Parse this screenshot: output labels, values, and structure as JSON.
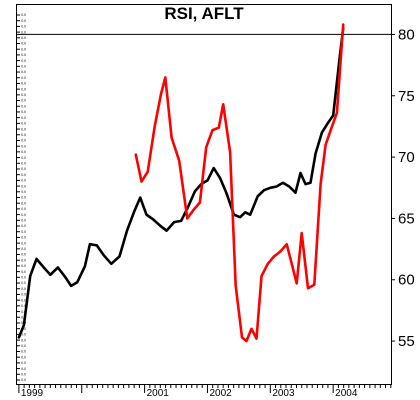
{
  "chart_data": {
    "type": "line",
    "title": "RSI, AFLT",
    "xlabel": "",
    "ylabel": "",
    "x_tick_labels": [
      "1999",
      "2001",
      "2002",
      "2003",
      "2004"
    ],
    "x_ticks": [
      1999.0,
      2001.0,
      2002.0,
      2003.0,
      2004.0
    ],
    "xlim": [
      1998.97,
      2004.92
    ],
    "y_ticks": [
      55,
      60,
      65,
      70,
      75,
      80
    ],
    "ylim": [
      51.5,
      82.4
    ],
    "reference_line": 80,
    "grid": false,
    "legend": "none",
    "series": [
      {
        "color": "#000000",
        "points": [
          [
            1999.0,
            55.3
          ],
          [
            1999.08,
            56.3
          ],
          [
            1999.18,
            60.3
          ],
          [
            1999.28,
            61.7
          ],
          [
            1999.38,
            61.1
          ],
          [
            1999.5,
            60.4
          ],
          [
            1999.62,
            61.0
          ],
          [
            1999.74,
            60.2
          ],
          [
            1999.83,
            59.5
          ],
          [
            1999.93,
            59.8
          ],
          [
            2000.05,
            61.1
          ],
          [
            2000.13,
            62.9
          ],
          [
            2000.24,
            62.8
          ],
          [
            2000.35,
            62.0
          ],
          [
            2000.47,
            61.3
          ],
          [
            2000.6,
            61.9
          ],
          [
            2000.72,
            64.0
          ],
          [
            2000.83,
            65.5
          ],
          [
            2000.93,
            66.7
          ],
          [
            2001.03,
            65.3
          ],
          [
            2001.14,
            64.9
          ],
          [
            2001.25,
            64.4
          ],
          [
            2001.35,
            64.0
          ],
          [
            2001.47,
            64.7
          ],
          [
            2001.58,
            64.8
          ],
          [
            2001.68,
            65.8
          ],
          [
            2001.8,
            67.2
          ],
          [
            2001.9,
            67.8
          ],
          [
            2002.0,
            68.1
          ],
          [
            2002.1,
            69.1
          ],
          [
            2002.2,
            68.3
          ],
          [
            2002.3,
            67.1
          ],
          [
            2002.42,
            65.3
          ],
          [
            2002.52,
            65.1
          ],
          [
            2002.6,
            65.5
          ],
          [
            2002.68,
            65.3
          ],
          [
            2002.8,
            66.8
          ],
          [
            2002.9,
            67.3
          ],
          [
            2003.0,
            67.5
          ],
          [
            2003.1,
            67.6
          ],
          [
            2003.2,
            67.9
          ],
          [
            2003.3,
            67.6
          ],
          [
            2003.4,
            67.1
          ],
          [
            2003.48,
            68.7
          ],
          [
            2003.56,
            67.8
          ],
          [
            2003.64,
            67.9
          ],
          [
            2003.72,
            70.3
          ],
          [
            2003.82,
            72.0
          ],
          [
            2003.92,
            72.8
          ],
          [
            2004.0,
            73.4
          ],
          [
            2004.1,
            78.0
          ],
          [
            2004.16,
            80.5
          ]
        ]
      },
      {
        "color": "#ff0000",
        "points": [
          [
            2000.86,
            70.2
          ],
          [
            2000.95,
            68.0
          ],
          [
            2001.05,
            68.8
          ],
          [
            2001.16,
            72.5
          ],
          [
            2001.26,
            75.1
          ],
          [
            2001.33,
            76.5
          ],
          [
            2001.43,
            71.6
          ],
          [
            2001.55,
            69.7
          ],
          [
            2001.68,
            65.0
          ],
          [
            2001.78,
            65.7
          ],
          [
            2001.88,
            66.3
          ],
          [
            2001.98,
            70.8
          ],
          [
            2002.08,
            72.2
          ],
          [
            2002.18,
            72.4
          ],
          [
            2002.25,
            74.3
          ],
          [
            2002.36,
            70.4
          ],
          [
            2002.45,
            59.5
          ],
          [
            2002.55,
            55.3
          ],
          [
            2002.62,
            55.0
          ],
          [
            2002.7,
            56.0
          ],
          [
            2002.78,
            55.2
          ],
          [
            2002.86,
            60.3
          ],
          [
            2002.96,
            61.3
          ],
          [
            2003.06,
            61.9
          ],
          [
            2003.16,
            62.3
          ],
          [
            2003.26,
            62.9
          ],
          [
            2003.33,
            61.5
          ],
          [
            2003.42,
            59.7
          ],
          [
            2003.5,
            63.8
          ],
          [
            2003.6,
            59.3
          ],
          [
            2003.7,
            59.6
          ],
          [
            2003.8,
            67.8
          ],
          [
            2003.88,
            71.0
          ],
          [
            2003.96,
            72.2
          ],
          [
            2004.06,
            73.6
          ],
          [
            2004.16,
            80.8
          ]
        ]
      }
    ]
  }
}
